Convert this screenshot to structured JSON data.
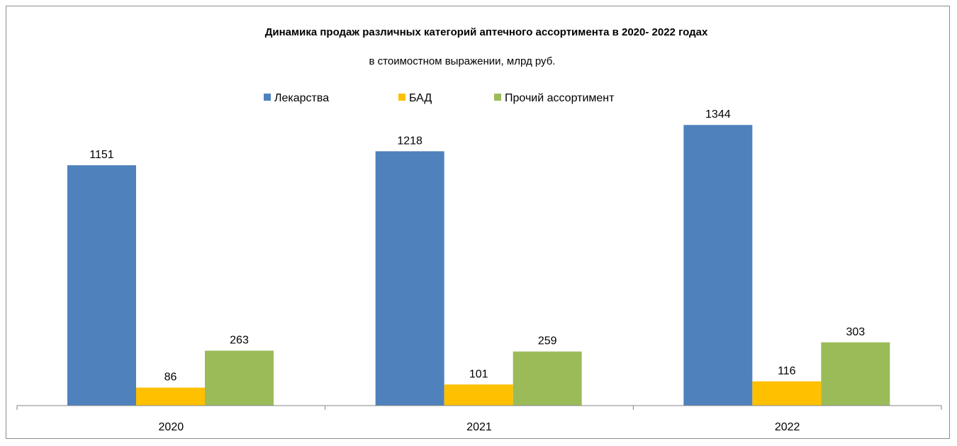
{
  "chart_data": {
    "type": "bar",
    "title": "Динамика продаж различных категорий аптечного ассортимента в 2020- 2022 годах",
    "subtitle": "в стоимостном выражении, млрд руб.",
    "categories": [
      "2020",
      "2021",
      "2022"
    ],
    "series": [
      {
        "name": "Лекарства",
        "values": [
          1151,
          1218,
          1344
        ],
        "color": "#4f81bd"
      },
      {
        "name": "БАД",
        "values": [
          86,
          101,
          116
        ],
        "color": "#ffc000"
      },
      {
        "name": "Прочий ассортимент",
        "values": [
          263,
          259,
          303
        ],
        "color": "#9bbb59"
      }
    ],
    "xlabel": "",
    "ylabel": "",
    "ylim": [
      0,
      1500
    ],
    "grid": false,
    "legend_position": "top",
    "data_labels": true
  }
}
